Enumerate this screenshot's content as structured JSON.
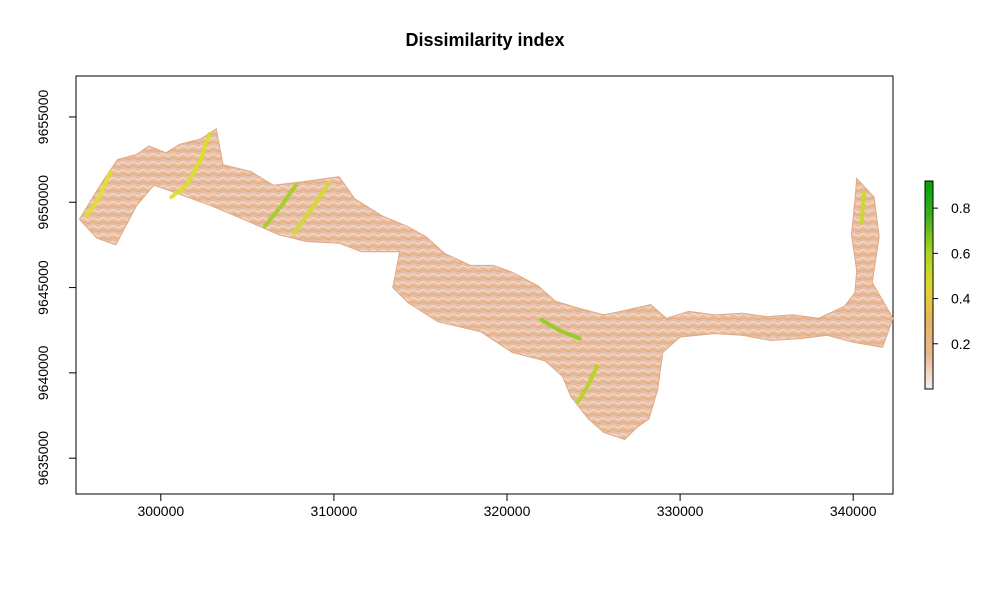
{
  "chart_data": {
    "type": "heatmap",
    "title": "Dissimilarity index",
    "xlabel": "",
    "ylabel": "",
    "xlim": [
      295100,
      342300
    ],
    "ylim": [
      9632900,
      9657400
    ],
    "x_ticks": [
      300000,
      310000,
      320000,
      330000,
      340000
    ],
    "x_tick_labels": [
      "300000",
      "310000",
      "320000",
      "330000",
      "340000"
    ],
    "y_ticks": [
      9635000,
      9640000,
      9645000,
      9650000,
      9655000
    ],
    "y_tick_labels": [
      "9635000",
      "9640000",
      "9645000",
      "9650000",
      "9655000"
    ],
    "grid": false,
    "legend": {
      "placement": "right",
      "min": 0.0,
      "max": 0.92,
      "ticks": [
        0.2,
        0.4,
        0.6,
        0.8
      ],
      "tick_labels": [
        "0.2",
        "0.4",
        "0.6",
        "0.8"
      ],
      "colors": [
        "#f5f0f0",
        "#e8b892",
        "#e6b45c",
        "#e0d82a",
        "#a7d21f",
        "#3fae1e",
        "#00a600"
      ]
    },
    "raster_extent": {
      "outline": [
        [
          295300,
          9649000
        ],
        [
          296500,
          9651000
        ],
        [
          297500,
          9652500
        ],
        [
          298600,
          9652800
        ],
        [
          299300,
          9653300
        ],
        [
          300300,
          9652900
        ],
        [
          301100,
          9653400
        ],
        [
          302300,
          9653700
        ],
        [
          303200,
          9654300
        ],
        [
          303600,
          9652200
        ],
        [
          305200,
          9651800
        ],
        [
          306500,
          9651000
        ],
        [
          308200,
          9651200
        ],
        [
          310300,
          9651500
        ],
        [
          311200,
          9650200
        ],
        [
          312800,
          9649200
        ],
        [
          314200,
          9648600
        ],
        [
          315300,
          9648000
        ],
        [
          316400,
          9647000
        ],
        [
          317900,
          9646300
        ],
        [
          319200,
          9646300
        ],
        [
          320300,
          9645900
        ],
        [
          321800,
          9645100
        ],
        [
          322800,
          9644200
        ],
        [
          324100,
          9643800
        ],
        [
          325600,
          9643400
        ],
        [
          327000,
          9643700
        ],
        [
          328300,
          9644000
        ],
        [
          329200,
          9643200
        ],
        [
          330500,
          9643600
        ],
        [
          332000,
          9643400
        ],
        [
          333600,
          9643500
        ],
        [
          335000,
          9643300
        ],
        [
          336500,
          9643400
        ],
        [
          338000,
          9643200
        ],
        [
          339500,
          9643900
        ],
        [
          340100,
          9644700
        ],
        [
          340200,
          9646000
        ],
        [
          339900,
          9648100
        ],
        [
          340100,
          9650100
        ],
        [
          340200,
          9651400
        ],
        [
          341200,
          9650300
        ],
        [
          341500,
          9648000
        ],
        [
          341100,
          9645300
        ],
        [
          342300,
          9643200
        ],
        [
          341700,
          9641500
        ],
        [
          340000,
          9641800
        ],
        [
          338500,
          9642200
        ],
        [
          336900,
          9642000
        ],
        [
          335200,
          9641900
        ],
        [
          333600,
          9642200
        ],
        [
          332000,
          9642300
        ],
        [
          330000,
          9642100
        ],
        [
          329000,
          9641200
        ],
        [
          328700,
          9639000
        ],
        [
          328200,
          9637300
        ],
        [
          327500,
          9636800
        ],
        [
          326800,
          9636100
        ],
        [
          325600,
          9636500
        ],
        [
          324700,
          9637300
        ],
        [
          323700,
          9638600
        ],
        [
          323200,
          9639800
        ],
        [
          322200,
          9640700
        ],
        [
          320300,
          9641200
        ],
        [
          318500,
          9642400
        ],
        [
          316000,
          9643000
        ],
        [
          314300,
          9644100
        ],
        [
          313400,
          9645000
        ],
        [
          313800,
          9647100
        ],
        [
          311600,
          9647100
        ],
        [
          310300,
          9647600
        ],
        [
          308400,
          9647700
        ],
        [
          306800,
          9648100
        ],
        [
          305000,
          9648900
        ],
        [
          302900,
          9649800
        ],
        [
          301000,
          9650500
        ],
        [
          299600,
          9651000
        ],
        [
          298600,
          9649800
        ],
        [
          297400,
          9647500
        ],
        [
          296300,
          9647900
        ]
      ],
      "high_value_ridges": [
        [
          [
            302800,
            9654000
          ],
          [
            302300,
            9652500
          ],
          [
            301500,
            9651000
          ],
          [
            300600,
            9650300
          ]
        ],
        [
          [
            307800,
            9651000
          ],
          [
            306900,
            9649700
          ],
          [
            306000,
            9648600
          ]
        ],
        [
          [
            309700,
            9651100
          ],
          [
            308700,
            9649600
          ],
          [
            307700,
            9648200
          ]
        ],
        [
          [
            325200,
            9640400
          ],
          [
            324700,
            9639300
          ],
          [
            324100,
            9638300
          ]
        ],
        [
          [
            322000,
            9643100
          ],
          [
            323000,
            9642500
          ],
          [
            324200,
            9642000
          ]
        ],
        [
          [
            297100,
            9651800
          ],
          [
            296400,
            9650200
          ],
          [
            295700,
            9649200
          ]
        ],
        [
          [
            340600,
            9650500
          ],
          [
            340500,
            9648800
          ]
        ]
      ]
    }
  }
}
